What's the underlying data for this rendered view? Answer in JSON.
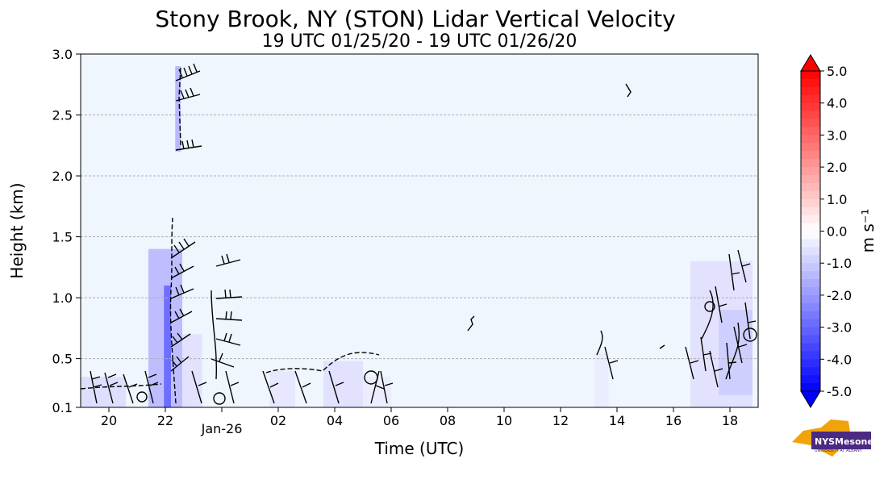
{
  "chart_data": {
    "type": "heatmap",
    "title": "Stony Brook, NY (STON) Lidar Vertical Velocity",
    "subtitle": "19 UTC 01/25/20 - 19 UTC 01/26/20",
    "xlabel": "Time (UTC)",
    "ylabel": "Height (km)",
    "xlim": [
      19,
      43
    ],
    "ylim": [
      0.1,
      3.0
    ],
    "grid": "horizontal dashed",
    "x_ticks": [
      {
        "x": 20,
        "label": "20"
      },
      {
        "x": 22,
        "label": "22"
      },
      {
        "x": 24,
        "label": "Jan-26"
      },
      {
        "x": 26,
        "label": "02"
      },
      {
        "x": 28,
        "label": "04"
      },
      {
        "x": 30,
        "label": "06"
      },
      {
        "x": 32,
        "label": "08"
      },
      {
        "x": 34,
        "label": "10"
      },
      {
        "x": 36,
        "label": "12"
      },
      {
        "x": 38,
        "label": "14"
      },
      {
        "x": 40,
        "label": "16"
      },
      {
        "x": 42,
        "label": "18"
      }
    ],
    "y_ticks": [
      {
        "y": 0.1,
        "label": "0.1"
      },
      {
        "y": 0.5,
        "label": "0.5"
      },
      {
        "y": 1.0,
        "label": "1.0"
      },
      {
        "y": 1.5,
        "label": "1.5"
      },
      {
        "y": 2.0,
        "label": "2.0"
      },
      {
        "y": 2.5,
        "label": "2.5"
      },
      {
        "y": 3.0,
        "label": "3.0"
      }
    ],
    "colorbar": {
      "label": "m s⁻¹",
      "min": -5.0,
      "max": 5.0,
      "step": 0.25,
      "ticks": [
        "5.0",
        "4.0",
        "3.0",
        "2.0",
        "1.0",
        "0.0",
        "-1.0",
        "-2.0",
        "-3.0",
        "-4.0",
        "-5.0"
      ],
      "colors": {
        "negative": "#0000ff",
        "zero": "#ffffff",
        "positive": "#ff0000",
        "background": "#eff6fd"
      }
    },
    "velocity_regions": [
      {
        "x": [
          19.0,
          20.6
        ],
        "y": [
          0.1,
          0.35
        ],
        "value": -0.7
      },
      {
        "x": [
          21.4,
          22.6
        ],
        "y": [
          0.1,
          1.4
        ],
        "value": -1.4
      },
      {
        "x": [
          21.95,
          22.2
        ],
        "y": [
          0.1,
          1.1
        ],
        "value": -3.0
      },
      {
        "x": [
          22.35,
          22.55
        ],
        "y": [
          2.2,
          2.9
        ],
        "value": -1.5
      },
      {
        "x": [
          22.6,
          23.3
        ],
        "y": [
          0.1,
          0.7
        ],
        "value": -0.6
      },
      {
        "x": [
          25.7,
          26.6
        ],
        "y": [
          0.1,
          0.4
        ],
        "value": -0.5
      },
      {
        "x": [
          27.6,
          29.0
        ],
        "y": [
          0.1,
          0.48
        ],
        "value": -0.6
      },
      {
        "x": [
          29.0,
          30.0
        ],
        "y": [
          0.1,
          0.35
        ],
        "value": -0.4
      },
      {
        "x": [
          37.2,
          37.7
        ],
        "y": [
          0.1,
          0.55
        ],
        "value": -0.4
      },
      {
        "x": [
          40.6,
          42.8
        ],
        "y": [
          0.1,
          1.3
        ],
        "value": -0.6
      },
      {
        "x": [
          41.6,
          42.8
        ],
        "y": [
          0.2,
          0.9
        ],
        "value": -1.0
      }
    ],
    "wind_barbs_present": true,
    "contours_present": true
  },
  "logo": {
    "text": "NYS",
    "subtext": "Mesonet",
    "org": "UNIVERSITY AT ALBANY",
    "colors": {
      "state": "#f0a30a",
      "text_bg": "#4b2a83"
    }
  }
}
